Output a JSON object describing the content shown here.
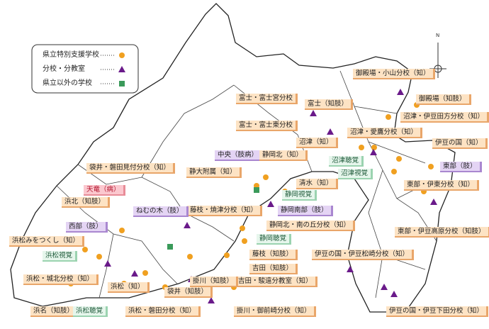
{
  "legend": {
    "items": [
      "県立特別支援学校",
      "分校・分教室",
      "県立以外の学校"
    ]
  },
  "labels": [
    "御殿場・小山分校（知）",
    "御殿場（知肢）",
    "富士・富士宮分校",
    "富士（知肢）",
    "沼津・伊豆田方分校（知）",
    "富士・富士東分校",
    "沼津・愛鷹分校（知）",
    "沼津（知）",
    "伊豆の国（知）",
    "中央（肢病）",
    "静岡北（知）",
    "沼津聴覚",
    "袋井・磐田見付分校（知）",
    "静大附属（知）",
    "沼津視覚",
    "東部（肢）",
    "天竜（病）",
    "清水（知）",
    "静岡視覚",
    "東部・伊東分校（知）",
    "浜北（知肢）",
    "藤枝・焼津分校（知）",
    "ねむの木（肢）",
    "静岡南部（肢）",
    "西部（肢）",
    "静岡北・南の丘分校（知）",
    "東部・伊豆高原分校（知肢）",
    "静岡聴覚",
    "浜松みをつくし（知）",
    "浜松視覚",
    "藤枝（知肢）",
    "伊豆の国・伊豆松崎分校（知）",
    "吉田（知肢）",
    "浜松・城北分校（知）",
    "吉田・駿遠分教室（知）",
    "掛川（知肢）",
    "浜松（知）",
    "袋井（知肢）",
    "浜名（知肢）",
    "浜松聴覚",
    "浜松・磐田分校（知）",
    "掛川・御前崎分校（知）",
    "伊豆の国・伊豆下田分校（知）"
  ]
}
